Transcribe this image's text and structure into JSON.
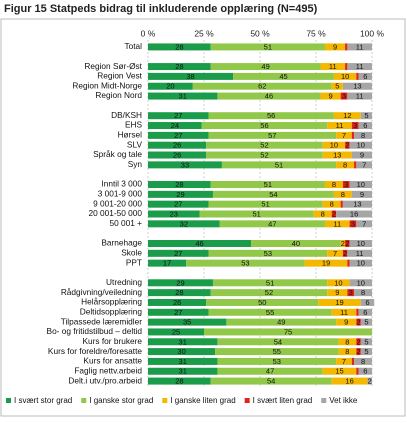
{
  "chart_data": {
    "type": "stacked-bar-horizontal",
    "title": "Figur 15 Statpeds bidrag til inkluderende opplæring (N=495)",
    "categories": [
      "Total",
      null,
      "Region Sør-Øst",
      "Region Vest",
      "Region Midt-Norge",
      "Region Nord",
      null,
      "DB/KSH",
      "EHS",
      "Hørsel",
      "SLV",
      "Språk og tale",
      "Syn",
      null,
      "Inntil 3 000",
      "3 001-9 000",
      "9 001-20 000",
      "20 001-50 000",
      "50 001 +",
      null,
      "Barnehage",
      "Skole",
      "PPT",
      null,
      "Utredning",
      "Rådgivning/veiledning",
      "Helårsopplæring",
      "Deltidsopplæring",
      "Tilpassede læremidler",
      "Bo- og fritidstilbud – deltid",
      "Kurs for brukere",
      "Kurs for foreldre/foresatte",
      "Kurs for ansatte",
      "Faglig nettv.arbeid",
      "Delt.i utv./pro.arbeid"
    ],
    "series": [
      {
        "name": "I svært stor grad",
        "color": "#1a9c4a",
        "values": [
          28,
          null,
          28,
          38,
          20,
          31,
          null,
          27,
          24,
          27,
          26,
          26,
          33,
          null,
          28,
          29,
          27,
          23,
          32,
          null,
          46,
          27,
          17,
          null,
          29,
          28,
          26,
          27,
          35,
          25,
          31,
          30,
          31,
          31,
          28
        ]
      },
      {
        "name": "I ganske stor grad",
        "color": "#92c84a",
        "values": [
          51,
          null,
          49,
          45,
          62,
          46,
          null,
          56,
          56,
          57,
          52,
          52,
          51,
          null,
          51,
          54,
          51,
          51,
          47,
          null,
          40,
          53,
          53,
          null,
          51,
          52,
          50,
          55,
          49,
          75,
          54,
          55,
          53,
          47,
          54
        ]
      },
      {
        "name": "I ganske liten grad",
        "color": "#f5b800",
        "values": [
          9,
          null,
          11,
          10,
          5,
          9,
          null,
          12,
          11,
          7,
          10,
          13,
          8,
          null,
          8,
          8,
          8,
          8,
          11,
          null,
          2,
          7,
          19,
          null,
          10,
          9,
          19,
          11,
          9,
          0,
          8,
          8,
          7,
          15,
          16
        ]
      },
      {
        "name": "I svært liten grad",
        "color": "#e2231a",
        "values": [
          1,
          null,
          1,
          1,
          0,
          3,
          null,
          0,
          3,
          1,
          2,
          0,
          1,
          null,
          3,
          0,
          1,
          2,
          3,
          null,
          2,
          2,
          1,
          null,
          0,
          3,
          0,
          1,
          2,
          0,
          2,
          2,
          1,
          1,
          0
        ]
      },
      {
        "name": "Vet ikke",
        "color": "#a6a6a6",
        "values": [
          11,
          null,
          11,
          6,
          13,
          11,
          null,
          5,
          6,
          8,
          10,
          9,
          7,
          null,
          10,
          9,
          13,
          16,
          7,
          null,
          10,
          11,
          10,
          null,
          10,
          8,
          6,
          6,
          5,
          0,
          5,
          5,
          8,
          6,
          2
        ]
      }
    ],
    "xlim": [
      0,
      100
    ],
    "xticks": [
      {
        "value": 0,
        "label": "0 %"
      },
      {
        "value": 25,
        "label": "25 %"
      },
      {
        "value": 50,
        "label": "50 %"
      },
      {
        "value": 75,
        "label": "75 %"
      },
      {
        "value": 100,
        "label": "100 %"
      }
    ],
    "grid": true,
    "legend": "bottom"
  }
}
